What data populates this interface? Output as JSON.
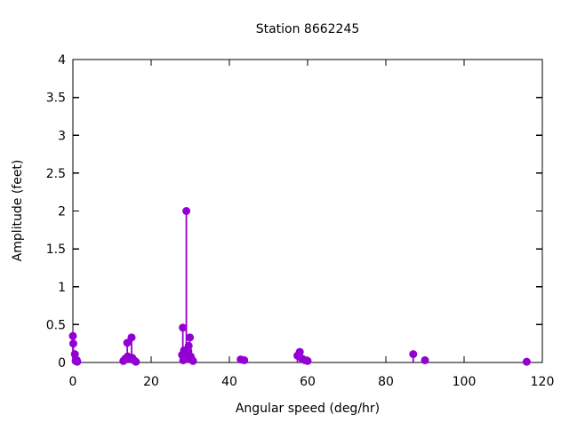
{
  "window": {
    "background_color": "#ffffff"
  },
  "chart_data": {
    "type": "scatter",
    "style": "impulses-with-points-stem-plot",
    "title": "Station 8662245",
    "xlabel": "Angular speed (deg/hr)",
    "ylabel": "Amplitude (feet)",
    "xlim": [
      0,
      120
    ],
    "ylim": [
      0,
      4
    ],
    "xticks": [
      0,
      20,
      40,
      60,
      80,
      100,
      120
    ],
    "yticks": [
      0,
      0.5,
      1,
      1.5,
      2,
      2.5,
      3,
      3.5,
      4
    ],
    "grid": false,
    "legend": "none",
    "point_color": "#9400d3",
    "axis_color": "#000000",
    "series": [
      {
        "name": "amplitude",
        "points": [
          [
            0.0,
            0.35
          ],
          [
            0.1,
            0.25
          ],
          [
            0.5,
            0.11
          ],
          [
            0.7,
            0.02
          ],
          [
            1.0,
            0.03
          ],
          [
            1.1,
            0.01
          ],
          [
            12.9,
            0.02
          ],
          [
            13.4,
            0.05
          ],
          [
            13.9,
            0.26
          ],
          [
            14.0,
            0.08
          ],
          [
            14.5,
            0.05
          ],
          [
            15.0,
            0.33
          ],
          [
            15.2,
            0.06
          ],
          [
            15.6,
            0.03
          ],
          [
            16.1,
            0.01
          ],
          [
            27.9,
            0.1
          ],
          [
            28.1,
            0.46
          ],
          [
            28.2,
            0.03
          ],
          [
            28.4,
            0.16
          ],
          [
            29.0,
            2.0
          ],
          [
            29.1,
            0.1
          ],
          [
            29.5,
            0.15
          ],
          [
            29.6,
            0.22
          ],
          [
            29.9,
            0.33
          ],
          [
            30.1,
            0.08
          ],
          [
            30.3,
            0.05
          ],
          [
            30.7,
            0.02
          ],
          [
            42.9,
            0.04
          ],
          [
            43.8,
            0.03
          ],
          [
            57.4,
            0.09
          ],
          [
            58.0,
            0.14
          ],
          [
            58.6,
            0.05
          ],
          [
            59.3,
            0.03
          ],
          [
            60.0,
            0.02
          ],
          [
            87.0,
            0.11
          ],
          [
            90.0,
            0.03
          ],
          [
            116.0,
            0.01
          ]
        ]
      }
    ]
  }
}
